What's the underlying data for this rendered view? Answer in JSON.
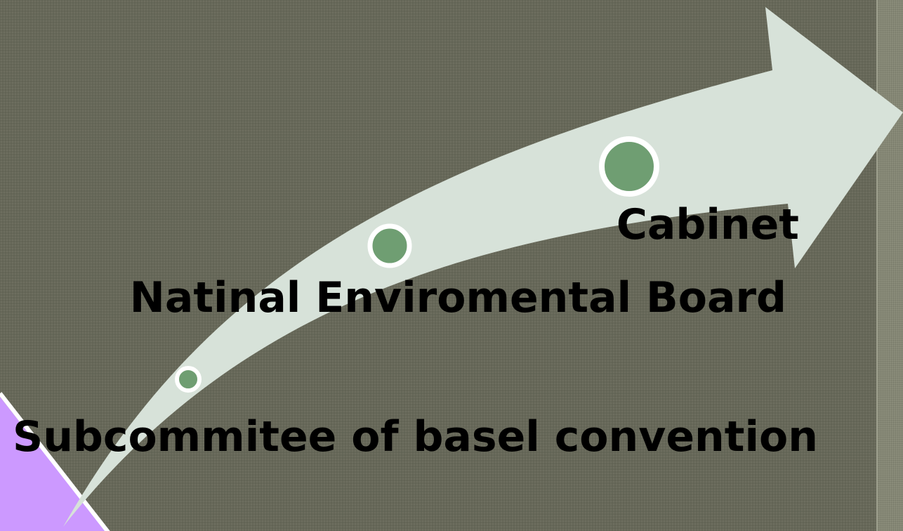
{
  "colors": {
    "background": "#676859",
    "arrow": "#d7e2d9",
    "node_fill": "#6f9e72",
    "node_ring": "#ffffff",
    "corner_accent": "#cc99ff",
    "text": "#000000"
  },
  "steps": [
    {
      "label": "Subcommitee of basel convention"
    },
    {
      "label": "Natinal Enviromental Board"
    },
    {
      "label": "Cabinet"
    }
  ]
}
